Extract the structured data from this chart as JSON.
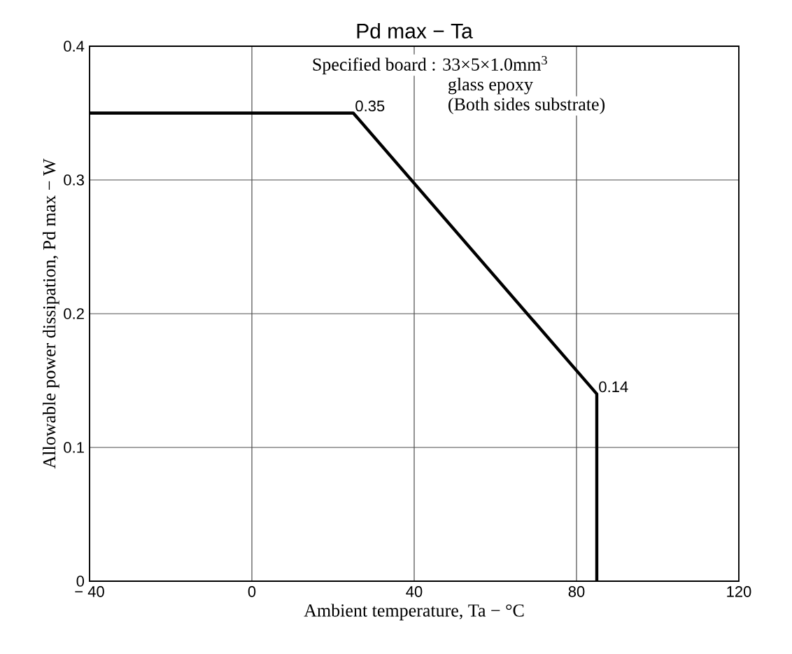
{
  "chart_data": {
    "type": "line",
    "title": "Pd max  −  Ta",
    "xlabel": "Ambient temperature,  Ta  −  °C",
    "ylabel": "Allowable power dissipation,  Pd max  −  W",
    "x": [
      -40,
      25,
      85,
      85
    ],
    "series": [
      {
        "color": "#000000",
        "values": [
          0.35,
          0.35,
          0.14,
          0
        ]
      }
    ],
    "xlim": [
      -40,
      120
    ],
    "ylim": [
      0,
      0.4
    ],
    "xticks": [
      {
        "value": -40,
        "label": "− 40"
      },
      0,
      40,
      80,
      120
    ],
    "yticks": [
      0,
      0.1,
      0.2,
      0.3,
      0.4
    ],
    "grid": true,
    "marker": "none",
    "line_style": "solid",
    "annotations": [
      "Specified board : 33×5×1.0mm$^{3}$",
      "glass epoxy",
      "(Both sides substrate)",
      {
        "text": "0.35",
        "x": 25,
        "y": 0.35
      },
      {
        "text": "0.14",
        "x": 85,
        "y": 0.14
      }
    ]
  }
}
